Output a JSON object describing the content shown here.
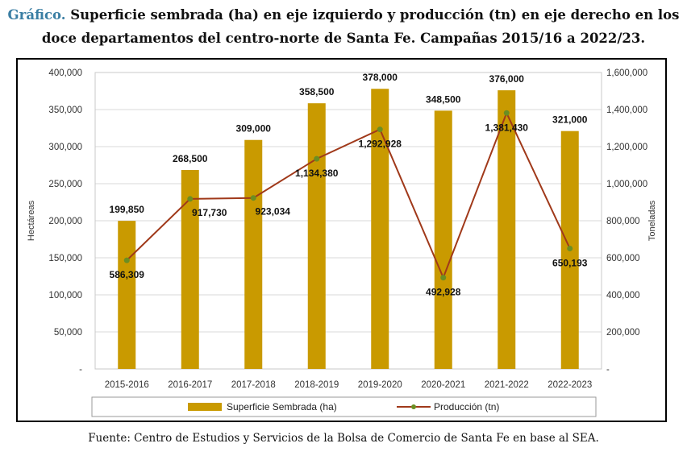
{
  "caption": {
    "lead": "Gráfico.",
    "line1": "Superficie sembrada (ha) en eje izquierdo y producción (tn) en eje derecho en los",
    "line2": "doce departamentos del centro-norte de Santa Fe. Campañas 2015/16 a 2022/23."
  },
  "source": "Fuente: Centro de Estudios y Servicios de la Bolsa de Comercio de Santa Fe en base al SEA.",
  "chart_data": {
    "type": "bar",
    "categories": [
      "2015-2016",
      "2016-2017",
      "2017-2018",
      "2018-2019",
      "2019-2020",
      "2020-2021",
      "2021-2022",
      "2022-2023"
    ],
    "series": [
      {
        "name": "Superficie Sembrada (ha)",
        "type": "bar",
        "axis": "left",
        "values": [
          199850,
          268500,
          309000,
          358500,
          378000,
          348500,
          376000,
          321000
        ],
        "labels": [
          "199,850",
          "268,500",
          "309,000",
          "358,500",
          "378,000",
          "348,500",
          "376,000",
          "321,000"
        ],
        "color": "#c99a00"
      },
      {
        "name": "Producción (tn)",
        "type": "line",
        "axis": "right",
        "values": [
          586309,
          917730,
          923034,
          1134380,
          1292928,
          492928,
          1381430,
          650193
        ],
        "labels": [
          "586,309",
          "917,730",
          "923,034",
          "1,134,380",
          "1,292,928",
          "492,928",
          "1,381,430",
          "650,193"
        ],
        "color": "#a0391a",
        "marker_color": "#6b8e23"
      }
    ],
    "ylabel": "Hectáreas",
    "y2label": "Toneladas",
    "ylim": [
      0,
      400000
    ],
    "y2lim": [
      0,
      1600000
    ],
    "yticks": [
      "-",
      "50,000",
      "100,000",
      "150,000",
      "200,000",
      "250,000",
      "300,000",
      "350,000",
      "400,000"
    ],
    "y2ticks": [
      "-",
      "200,000",
      "400,000",
      "600,000",
      "800,000",
      "1,000,000",
      "1,200,000",
      "1,400,000",
      "1,600,000"
    ],
    "grid": true,
    "legend_position": "bottom"
  }
}
